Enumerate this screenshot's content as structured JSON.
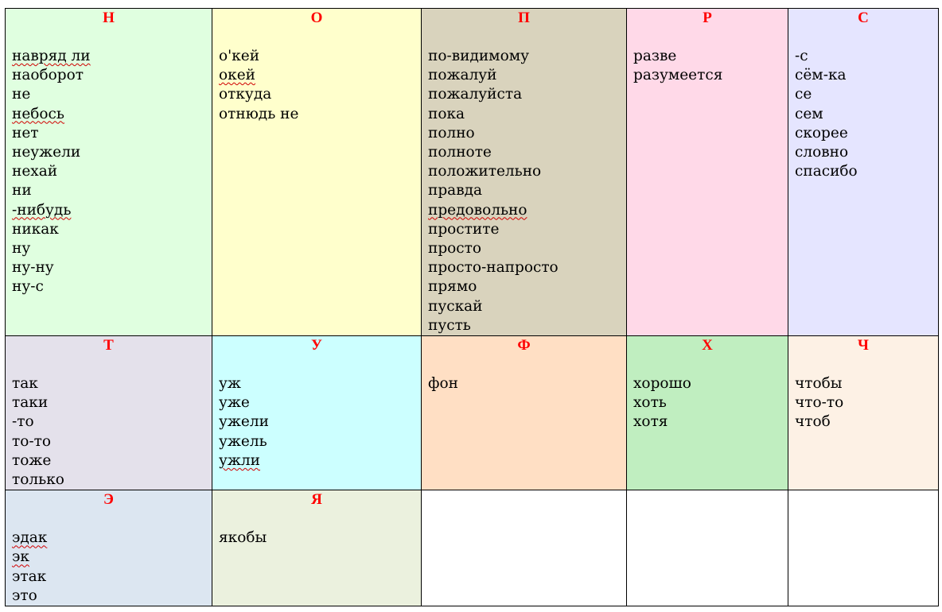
{
  "table": {
    "rows": [
      [
        {
          "letter": "Н",
          "color": "#e0ffe0",
          "words": [
            "навряд ли",
            "наоборот",
            "не",
            "небось",
            "нет",
            "неужели",
            "нехай",
            "ни",
            "-нибудь",
            "никак",
            "ну",
            "ну-ну",
            "ну-с"
          ]
        },
        {
          "letter": "О",
          "color": "#ffffcc",
          "words": [
            "о'кей",
            "окей",
            "откуда",
            "отнюдь не"
          ]
        },
        {
          "letter": "П",
          "color": "#d9d3bd",
          "words": [
            "по-видимому",
            "пожалуй",
            "пожалуйста",
            "пока",
            "полно",
            "полноте",
            "положительно",
            "правда",
            "предовольно",
            "простите",
            "просто",
            "просто-напросто",
            "прямо",
            "пускай",
            "пусть"
          ]
        },
        {
          "letter": "Р",
          "color": "#ffd9e8",
          "words": [
            "разве",
            "разумеется"
          ]
        },
        {
          "letter": "С",
          "color": "#e5e5ff",
          "words": [
            "-с",
            "сём-ка",
            "се",
            "сем",
            "скорее",
            "словно",
            "спасибо"
          ]
        }
      ],
      [
        {
          "letter": "Т",
          "color": "#e4e1eb",
          "words": [
            "так",
            "таки",
            "-то",
            "то-то",
            "тоже",
            "только"
          ]
        },
        {
          "letter": "У",
          "color": "#ccffff",
          "words": [
            "уж",
            "уже",
            "ужели",
            "ужель",
            "ужли"
          ]
        },
        {
          "letter": "Ф",
          "color": "#ffdfc4",
          "words": [
            "фон"
          ]
        },
        {
          "letter": "Х",
          "color": "#c0eec0",
          "words": [
            "хорошо",
            "хоть",
            "хотя"
          ]
        },
        {
          "letter": "Ч",
          "color": "#fdf1e5",
          "words": [
            "чтобы",
            "что-то",
            "чтоб"
          ]
        }
      ],
      [
        {
          "letter": "Э",
          "color": "#dce6f1",
          "words": [
            "эдак",
            "эк",
            "этак",
            "это"
          ]
        },
        {
          "letter": "Я",
          "color": "#ebf1de",
          "words": [
            "якобы"
          ]
        },
        {
          "letter": "",
          "color": "#ffffff",
          "words": []
        },
        {
          "letter": "",
          "color": "#ffffff",
          "words": []
        },
        {
          "letter": "",
          "color": "#ffffff",
          "words": []
        }
      ]
    ]
  }
}
